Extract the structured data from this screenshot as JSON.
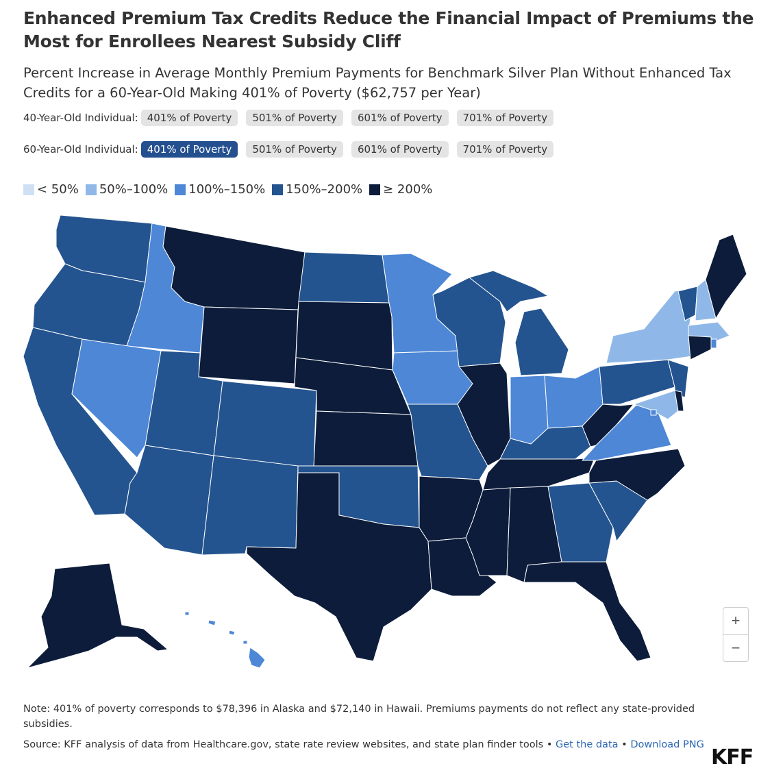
{
  "title": "Enhanced Premium Tax Credits Reduce the Financial Impact of Premiums the Most for Enrollees Nearest Subsidy Cliff",
  "subtitle": "Percent Increase in Average Monthly Premium Payments for Benchmark Silver Plan Without Enhanced Tax Credits for a 60-Year-Old Making 401% of Poverty ($62,757 per Year)",
  "row40": {
    "label": "40-Year-Old Individual:",
    "buttons": [
      "401% of Poverty",
      "501% of Poverty",
      "601% of Poverty",
      "701% of Poverty"
    ]
  },
  "row60": {
    "label": "60-Year-Old Individual:",
    "buttons": [
      "401% of Poverty",
      "501% of Poverty",
      "601% of Poverty",
      "701% of Poverty"
    ],
    "selected": 0
  },
  "legend": [
    {
      "label": "< 50%",
      "color": "#cfe0f4"
    },
    {
      "label": "50%–100%",
      "color": "#8fb8e8"
    },
    {
      "label": "100%–150%",
      "color": "#4d87d6"
    },
    {
      "label": "150%–200%",
      "color": "#24548f"
    },
    {
      "label": "≥ 200%",
      "color": "#0c1c3a"
    }
  ],
  "map_data": {
    "colors": {
      "lt50": "#cfe0f4",
      "b50_100": "#8fb8e8",
      "b100_150": "#4d87d6",
      "b150_200": "#24548f",
      "ge200": "#0c1c3a"
    },
    "states": {
      "WA": "150-200",
      "OR": "150-200",
      "CA": "150-200",
      "ID": "100-150",
      "NV": "100-150",
      "MT": ">=200",
      "WY": ">=200",
      "UT": "150-200",
      "AZ": "150-200",
      "CO": "150-200",
      "NM": "150-200",
      "ND": "150-200",
      "SD": ">=200",
      "NE": ">=200",
      "KS": ">=200",
      "OK": "150-200",
      "TX": ">=200",
      "MN": "100-150",
      "IA": "100-150",
      "MO": "150-200",
      "AR": ">=200",
      "LA": ">=200",
      "WI": "150-200",
      "IL": ">=200",
      "MI": "150-200",
      "IN": "100-150",
      "OH": "100-150",
      "KY": "150-200",
      "TN": ">=200",
      "MS": ">=200",
      "AL": ">=200",
      "GA": "150-200",
      "FL": ">=200",
      "SC": "150-200",
      "NC": ">=200",
      "VA": "100-150",
      "WV": ">=200",
      "PA": "150-200",
      "NY": "50-100",
      "VT": "150-200",
      "NH": "50-100",
      "ME": ">=200",
      "MA": "50-100",
      "RI": "100-150",
      "CT": ">=200",
      "NJ": "150-200",
      "DE": ">=200",
      "MD": "50-100",
      "DC": "100-150",
      "AK": ">=200",
      "HI": "100-150"
    }
  },
  "zoom": {
    "in": "+",
    "out": "−"
  },
  "note": "Note: 401% of poverty corresponds to $78,396 in Alaska and $72,140 in Hawaii. Premiums payments do not reflect any state-provided subsidies.",
  "source": {
    "text": "Source: KFF analysis of data from Healthcare.gov, state rate review websites, and state plan finder tools • ",
    "get_data": "Get the data",
    "sep": " • ",
    "download": "Download PNG"
  },
  "logo": "KFF"
}
